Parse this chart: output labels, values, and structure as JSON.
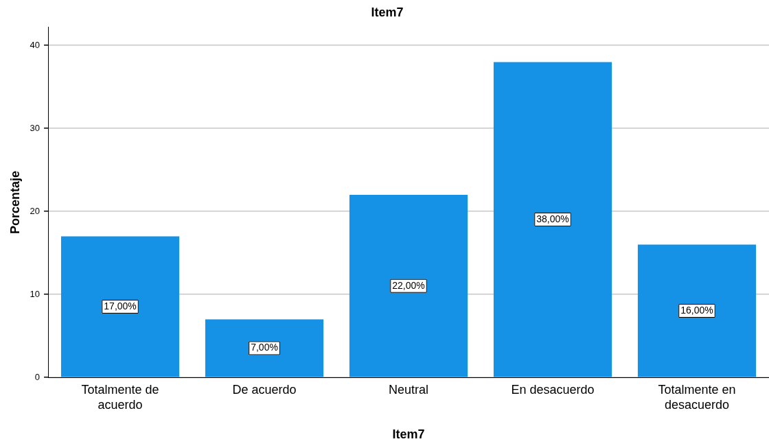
{
  "chart_data": {
    "type": "bar",
    "title": "Item7",
    "xlabel": "Item7",
    "ylabel": "Porcentaje",
    "categories": [
      "Totalmente de acuerdo",
      "De acuerdo",
      "Neutral",
      "En desacuerdo",
      "Totalmente en desacuerdo"
    ],
    "values": [
      17,
      7,
      22,
      38,
      16
    ],
    "value_labels": [
      "17,00%",
      "7,00%",
      "22,00%",
      "38,00%",
      "16,00%"
    ],
    "color": "#1591e6",
    "ylim": [
      0,
      42.2
    ],
    "yticks": [
      0,
      10,
      20,
      30,
      40
    ],
    "grid": "y"
  }
}
